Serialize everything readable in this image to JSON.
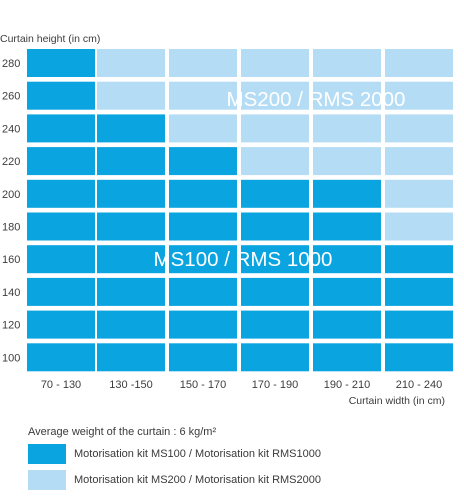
{
  "chart_data": {
    "type": "heatmap",
    "ylabel": "Curtain height (in cm)",
    "xlabel": "Curtain width (in cm)",
    "y_categories": [
      "280",
      "260",
      "240",
      "220",
      "200",
      "180",
      "160",
      "140",
      "120",
      "100"
    ],
    "x_categories": [
      "70 - 130",
      "130 -150",
      "150 - 170",
      "170 - 190",
      "190 - 210",
      "210 - 240"
    ],
    "max_width_index_ms100_by_height": [
      0,
      0,
      1,
      2,
      4,
      4,
      5,
      5,
      5,
      5
    ],
    "region_labels": [
      {
        "text": "MS200 / RMS 2000",
        "kit": "ms200"
      },
      {
        "text": "MS100 / RMS 1000",
        "kit": "ms100"
      }
    ],
    "colors": {
      "ms100": "#0aa4e0",
      "ms200": "#b4ddf5"
    }
  },
  "note": "Average weight of the curtain : 6 kg/m²",
  "legend": [
    {
      "label": "Motorisation kit MS100 / Motorisation kit RMS1000",
      "kit": "ms100"
    },
    {
      "label": "Motorisation kit MS200 / Motorisation kit RMS2000",
      "kit": "ms200"
    }
  ]
}
